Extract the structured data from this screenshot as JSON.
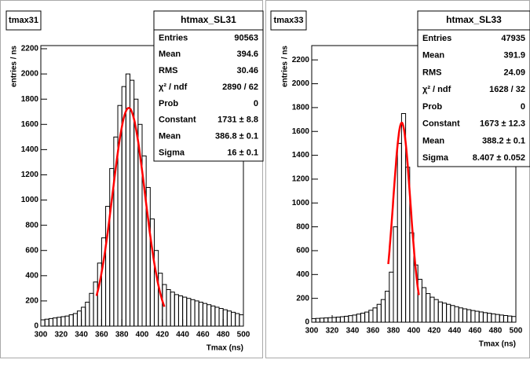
{
  "chart_data": [
    {
      "type": "histogram",
      "title": "tmax31",
      "stats_title": "htmax_SL31",
      "x_label": "Tmax (ns)",
      "y_label": "entries / ns",
      "color": "#000000",
      "bins": [
        300,
        304,
        308,
        312,
        316,
        320,
        324,
        328,
        332,
        336,
        340,
        344,
        348,
        352,
        356,
        360,
        364,
        368,
        372,
        376,
        380,
        384,
        388,
        392,
        396,
        400,
        404,
        408,
        412,
        416,
        420,
        424,
        428,
        432,
        436,
        440,
        444,
        448,
        452,
        456,
        460,
        464,
        468,
        472,
        476,
        480,
        484,
        488,
        492,
        496,
        500
      ],
      "values": [
        50,
        55,
        60,
        65,
        70,
        75,
        80,
        90,
        100,
        120,
        150,
        190,
        260,
        350,
        500,
        700,
        950,
        1250,
        1500,
        1750,
        1900,
        2000,
        1950,
        1800,
        1600,
        1350,
        1100,
        850,
        600,
        420,
        330,
        290,
        270,
        250,
        240,
        230,
        220,
        210,
        200,
        190,
        180,
        170,
        160,
        150,
        140,
        130,
        120,
        110,
        100,
        90
      ],
      "xlim": [
        300,
        500
      ],
      "xticks": [
        300,
        320,
        340,
        360,
        380,
        400,
        420,
        440,
        460,
        480,
        500
      ],
      "ylim": [
        0,
        2225
      ],
      "yticks": [
        0,
        200,
        400,
        600,
        800,
        1000,
        1200,
        1400,
        1600,
        1800,
        2000,
        2200
      ],
      "fit": {
        "color": "#ff0000",
        "constant": 1731,
        "mean": 386.8,
        "sigma": 16,
        "range": [
          355,
          422
        ]
      },
      "stats": [
        {
          "label": "Entries",
          "value": 90563
        },
        {
          "label": "Mean",
          "value": 394.6
        },
        {
          "label": "RMS",
          "value": 30.46
        },
        {
          "label": "χ² / ndf",
          "value": "2890 / 62"
        },
        {
          "label": "Prob",
          "value": 0
        },
        {
          "label": "Constant",
          "value": "1731 ± 8.8"
        },
        {
          "label": "Mean",
          "value": "386.8 ± 0.1"
        },
        {
          "label": "Sigma",
          "value": "16 ± 0.1"
        }
      ]
    },
    {
      "type": "histogram",
      "title": "tmax33",
      "stats_title": "htmax_SL33",
      "x_label": "Tmax (ns)",
      "y_label": "entries / ns",
      "color": "#000000",
      "bins": [
        300,
        304,
        308,
        312,
        316,
        320,
        324,
        328,
        332,
        336,
        340,
        344,
        348,
        352,
        356,
        360,
        364,
        368,
        372,
        376,
        380,
        384,
        388,
        392,
        396,
        400,
        404,
        408,
        412,
        416,
        420,
        424,
        428,
        432,
        436,
        440,
        444,
        448,
        452,
        456,
        460,
        464,
        468,
        472,
        476,
        480,
        484,
        488,
        492,
        496,
        500
      ],
      "values": [
        30,
        32,
        34,
        36,
        38,
        40,
        43,
        46,
        50,
        55,
        60,
        68,
        76,
        85,
        100,
        120,
        150,
        190,
        260,
        420,
        800,
        1500,
        1750,
        1300,
        750,
        480,
        360,
        290,
        240,
        210,
        190,
        170,
        160,
        150,
        140,
        130,
        120,
        112,
        105,
        98,
        92,
        86,
        80,
        75,
        70,
        65,
        60,
        56,
        52,
        48
      ],
      "xlim": [
        300,
        500
      ],
      "xticks": [
        300,
        320,
        340,
        360,
        380,
        400,
        420,
        440,
        460,
        480,
        500
      ],
      "ylim": [
        0,
        2320
      ],
      "yticks": [
        0,
        200,
        400,
        600,
        800,
        1000,
        1200,
        1400,
        1600,
        1800,
        2000,
        2200
      ],
      "fit": {
        "color": "#ff0000",
        "constant": 1673,
        "mean": 388.2,
        "sigma": 8.407,
        "range": [
          375,
          405
        ]
      },
      "stats": [
        {
          "label": "Entries",
          "value": 47935
        },
        {
          "label": "Mean",
          "value": 391.9
        },
        {
          "label": "RMS",
          "value": 24.09
        },
        {
          "label": "χ² / ndf",
          "value": "1628 / 32"
        },
        {
          "label": "Prob",
          "value": 0
        },
        {
          "label": "Constant",
          "value": "1673 ± 12.3"
        },
        {
          "label": "Mean",
          "value": "388.2 ± 0.1"
        },
        {
          "label": "Sigma",
          "value": "8.407 ± 0.052"
        }
      ]
    }
  ]
}
